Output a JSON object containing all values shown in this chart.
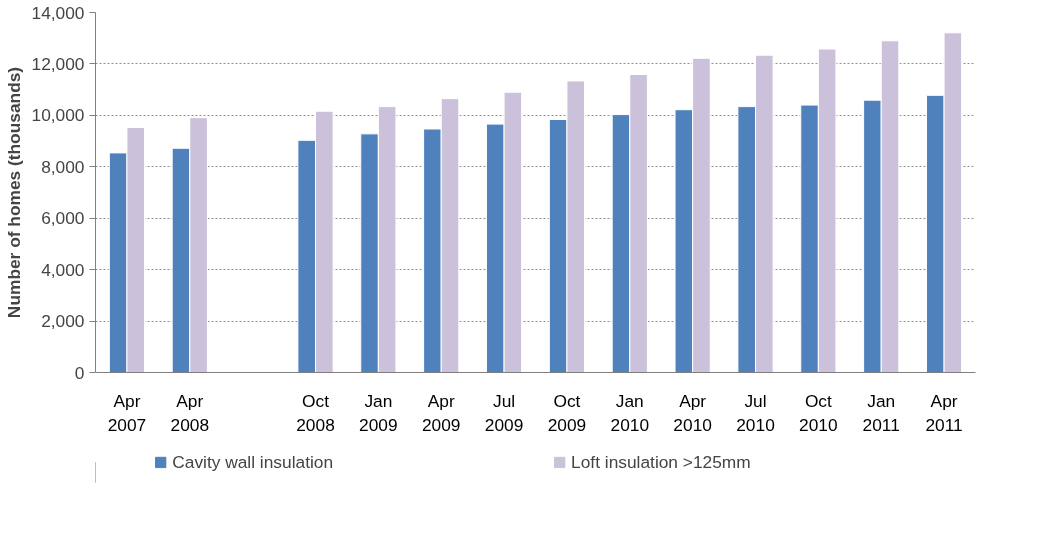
{
  "chart_data": {
    "type": "bar",
    "ylabel": "Number of homes (thousands)",
    "categories": [
      "Apr\n2007",
      "Apr\n2008",
      null,
      "Oct\n2008",
      "Jan\n2009",
      "Apr\n2009",
      "Jul\n2009",
      "Oct\n2009",
      "Jan\n2010",
      "Apr\n2010",
      "Jul\n2010",
      "Oct\n2010",
      "Jan\n2011",
      "Apr\n2011"
    ],
    "series": [
      {
        "name": "Cavity wall insulation",
        "color": "#4f81bd",
        "values": [
          8540,
          8720,
          null,
          9030,
          9280,
          9470,
          9660,
          9840,
          10030,
          10220,
          10340,
          10400,
          10590,
          10780
        ]
      },
      {
        "name": "Loft insulation >125mm",
        "color": "#ccc1da",
        "values": [
          9530,
          9910,
          null,
          10160,
          10340,
          10650,
          10900,
          11340,
          11590,
          12220,
          12340,
          12580,
          12900,
          13210
        ]
      }
    ],
    "ylim": [
      0,
      14000
    ],
    "yticks": [
      {
        "value": 0,
        "label": "0"
      },
      {
        "value": 2000,
        "label": "2,000"
      },
      {
        "value": 4000,
        "label": "4,000"
      },
      {
        "value": 6000,
        "label": "6,000"
      },
      {
        "value": 8000,
        "label": "8,000"
      },
      {
        "value": 10000,
        "label": "10,000"
      },
      {
        "value": 12000,
        "label": "12,000"
      },
      {
        "value": 14000,
        "label": "14,000"
      }
    ],
    "grid": "y",
    "legend": "bottom"
  }
}
